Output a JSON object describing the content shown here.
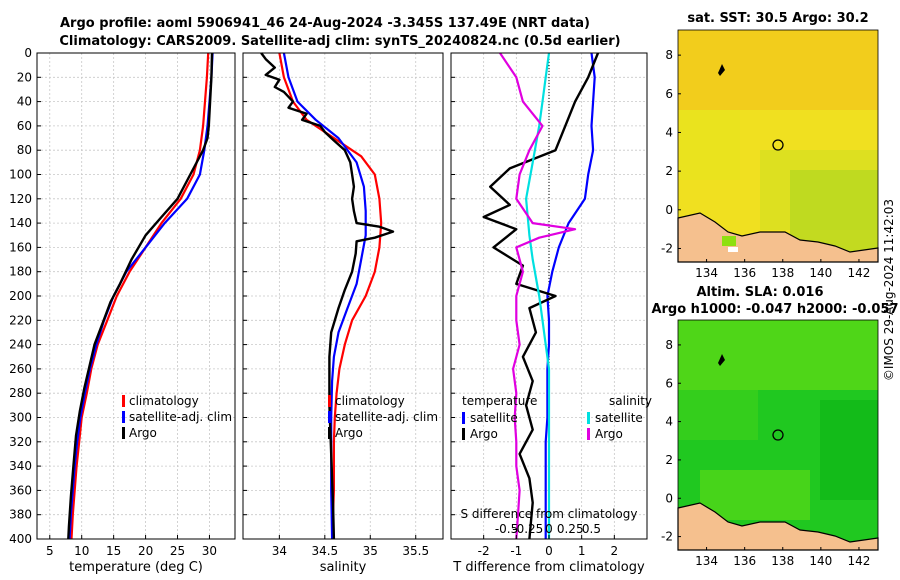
{
  "titles": {
    "line1": "Argo profile: aoml 5906941_46 24-Aug-2024 -3.345S 137.49E (NRT data)",
    "line2": "Climatology: CARS2009. Satellite-adj clim: synTS_20240824.nc (0.5d earlier)"
  },
  "chart_data": [
    {
      "id": "temperature",
      "type": "line",
      "xlabel": "temperature (deg C)",
      "ylabel": "",
      "xlim": [
        3,
        34
      ],
      "ylim": [
        400,
        0
      ],
      "xticks": [
        5,
        10,
        15,
        20,
        25,
        30
      ],
      "yticks": [
        0,
        20,
        40,
        60,
        80,
        100,
        120,
        140,
        160,
        180,
        200,
        220,
        240,
        260,
        280,
        300,
        320,
        340,
        360,
        380,
        400
      ],
      "legend": [
        "climatology",
        "satellite-adj. clim",
        "Argo"
      ],
      "series": [
        {
          "name": "climatology",
          "color": "#ff0000",
          "points": [
            [
              29.8,
              0
            ],
            [
              29.6,
              20
            ],
            [
              29.3,
              40
            ],
            [
              29.0,
              60
            ],
            [
              28.5,
              80
            ],
            [
              27.5,
              100
            ],
            [
              25.5,
              120
            ],
            [
              22.5,
              140
            ],
            [
              20.0,
              160
            ],
            [
              17.5,
              180
            ],
            [
              15.5,
              200
            ],
            [
              14.0,
              220
            ],
            [
              12.5,
              240
            ],
            [
              11.5,
              260
            ],
            [
              10.8,
              280
            ],
            [
              10.0,
              300
            ],
            [
              9.6,
              320
            ],
            [
              9.2,
              340
            ],
            [
              8.9,
              360
            ],
            [
              8.6,
              380
            ],
            [
              8.4,
              400
            ]
          ]
        },
        {
          "name": "satellite-adj. clim",
          "color": "#0000ff",
          "points": [
            [
              30.5,
              0
            ],
            [
              30.3,
              20
            ],
            [
              30.0,
              40
            ],
            [
              29.7,
              60
            ],
            [
              29.2,
              80
            ],
            [
              28.5,
              100
            ],
            [
              26.5,
              120
            ],
            [
              23.0,
              140
            ],
            [
              20.0,
              160
            ],
            [
              17.0,
              180
            ],
            [
              15.0,
              200
            ],
            [
              13.5,
              220
            ],
            [
              12.3,
              240
            ],
            [
              11.3,
              260
            ],
            [
              10.5,
              280
            ],
            [
              9.8,
              300
            ],
            [
              9.3,
              320
            ],
            [
              8.9,
              340
            ],
            [
              8.6,
              360
            ],
            [
              8.3,
              380
            ],
            [
              8.1,
              400
            ]
          ]
        },
        {
          "name": "Argo",
          "color": "#000000",
          "points": [
            [
              30.4,
              0
            ],
            [
              30.3,
              20
            ],
            [
              30.1,
              40
            ],
            [
              29.9,
              60
            ],
            [
              29.7,
              70
            ],
            [
              29.0,
              80
            ],
            [
              27.0,
              100
            ],
            [
              25.0,
              120
            ],
            [
              22.5,
              135
            ],
            [
              20.0,
              150
            ],
            [
              17.8,
              170
            ],
            [
              16.0,
              190
            ],
            [
              14.5,
              205
            ],
            [
              13.3,
              222
            ],
            [
              12.0,
              240
            ],
            [
              11.2,
              258
            ],
            [
              10.4,
              276
            ],
            [
              9.7,
              295
            ],
            [
              9.1,
              315
            ],
            [
              8.7,
              340
            ],
            [
              8.3,
              365
            ],
            [
              8.0,
              390
            ],
            [
              7.9,
              400
            ]
          ]
        }
      ]
    },
    {
      "id": "salinity",
      "type": "line",
      "xlabel": "salinity",
      "ylabel": "",
      "xlim": [
        33.6,
        35.8
      ],
      "ylim": [
        400,
        0
      ],
      "xticks": [
        34,
        34.5,
        35,
        35.5
      ],
      "legend": [
        "climatology",
        "satellite-adj. clim",
        "Argo"
      ],
      "series": [
        {
          "name": "climatology",
          "color": "#ff0000",
          "points": [
            [
              34.0,
              0
            ],
            [
              34.05,
              20
            ],
            [
              34.15,
              40
            ],
            [
              34.3,
              55
            ],
            [
              34.6,
              70
            ],
            [
              34.9,
              85
            ],
            [
              35.05,
              100
            ],
            [
              35.1,
              120
            ],
            [
              35.12,
              140
            ],
            [
              35.1,
              160
            ],
            [
              35.05,
              180
            ],
            [
              34.95,
              200
            ],
            [
              34.8,
              220
            ],
            [
              34.72,
              240
            ],
            [
              34.66,
              260
            ],
            [
              34.63,
              280
            ],
            [
              34.61,
              300
            ],
            [
              34.6,
              320
            ],
            [
              34.6,
              340
            ],
            [
              34.6,
              360
            ],
            [
              34.59,
              380
            ],
            [
              34.59,
              400
            ]
          ]
        },
        {
          "name": "satellite-adj. clim",
          "color": "#0000ff",
          "points": [
            [
              34.05,
              0
            ],
            [
              34.1,
              20
            ],
            [
              34.2,
              40
            ],
            [
              34.4,
              55
            ],
            [
              34.65,
              70
            ],
            [
              34.85,
              90
            ],
            [
              34.93,
              110
            ],
            [
              34.95,
              130
            ],
            [
              34.95,
              150
            ],
            [
              34.9,
              170
            ],
            [
              34.85,
              190
            ],
            [
              34.75,
              210
            ],
            [
              34.65,
              230
            ],
            [
              34.6,
              250
            ],
            [
              34.58,
              270
            ],
            [
              34.57,
              300
            ],
            [
              34.57,
              330
            ],
            [
              34.57,
              360
            ],
            [
              34.58,
              400
            ]
          ]
        },
        {
          "name": "Argo",
          "color": "#000000",
          "points": [
            [
              33.8,
              0
            ],
            [
              33.85,
              5
            ],
            [
              33.95,
              12
            ],
            [
              33.85,
              18
            ],
            [
              34.0,
              22
            ],
            [
              33.95,
              28
            ],
            [
              34.05,
              32
            ],
            [
              34.15,
              40
            ],
            [
              34.1,
              45
            ],
            [
              34.3,
              50
            ],
            [
              34.25,
              55
            ],
            [
              34.45,
              60
            ],
            [
              34.5,
              65
            ],
            [
              34.6,
              72
            ],
            [
              34.72,
              80
            ],
            [
              34.78,
              90
            ],
            [
              34.8,
              100
            ],
            [
              34.82,
              110
            ],
            [
              34.8,
              120
            ],
            [
              34.82,
              130
            ],
            [
              34.85,
              140
            ],
            [
              35.1,
              143
            ],
            [
              35.25,
              147
            ],
            [
              35.05,
              152
            ],
            [
              34.85,
              155
            ],
            [
              34.84,
              165
            ],
            [
              34.8,
              180
            ],
            [
              34.72,
              195
            ],
            [
              34.65,
              210
            ],
            [
              34.57,
              230
            ],
            [
              34.55,
              250
            ],
            [
              34.55,
              270
            ],
            [
              34.55,
              290
            ],
            [
              34.56,
              310
            ],
            [
              34.57,
              330
            ],
            [
              34.58,
              350
            ],
            [
              34.59,
              370
            ],
            [
              34.6,
              400
            ]
          ]
        }
      ]
    },
    {
      "id": "difference",
      "type": "line",
      "xlabel": "T difference from climatology",
      "x2label": "S difference from climatology",
      "xlim": [
        -3,
        3
      ],
      "ylim": [
        400,
        0
      ],
      "xticks": [
        -2,
        -1,
        0,
        1,
        2
      ],
      "x2ticks": [
        "-0.5",
        "-0.25",
        "0",
        "0.25",
        "0.5"
      ],
      "legend": {
        "temperature": [
          "satellite",
          "Argo"
        ],
        "salinity": [
          "satellite",
          "Argo"
        ]
      },
      "legend_titles": [
        "temperature",
        "salinity"
      ],
      "series": [
        {
          "name": "temperature satellite",
          "color": "#0000ff",
          "points": [
            [
              1.3,
              0
            ],
            [
              1.4,
              20
            ],
            [
              1.35,
              40
            ],
            [
              1.3,
              60
            ],
            [
              1.35,
              80
            ],
            [
              1.2,
              100
            ],
            [
              1.1,
              120
            ],
            [
              0.6,
              140
            ],
            [
              0.3,
              160
            ],
            [
              0.1,
              180
            ],
            [
              -0.05,
              200
            ],
            [
              0.0,
              220
            ],
            [
              0.0,
              240
            ],
            [
              -0.05,
              260
            ],
            [
              -0.05,
              280
            ],
            [
              -0.05,
              300
            ],
            [
              -0.1,
              320
            ],
            [
              -0.1,
              340
            ],
            [
              -0.1,
              360
            ],
            [
              -0.1,
              380
            ],
            [
              -0.1,
              400
            ]
          ]
        },
        {
          "name": "temperature Argo",
          "color": "#000000",
          "points": [
            [
              1.5,
              0
            ],
            [
              1.2,
              20
            ],
            [
              0.8,
              40
            ],
            [
              0.5,
              60
            ],
            [
              0.2,
              80
            ],
            [
              -1.2,
              95
            ],
            [
              -1.8,
              110
            ],
            [
              -1.2,
              125
            ],
            [
              -2.0,
              135
            ],
            [
              -1.0,
              145
            ],
            [
              -1.7,
              160
            ],
            [
              -0.8,
              175
            ],
            [
              -1.0,
              190
            ],
            [
              0.2,
              200
            ],
            [
              -0.6,
              210
            ],
            [
              -0.4,
              230
            ],
            [
              -0.8,
              250
            ],
            [
              -0.5,
              270
            ],
            [
              -0.7,
              290
            ],
            [
              -0.5,
              310
            ],
            [
              -0.9,
              330
            ],
            [
              -0.6,
              350
            ],
            [
              -0.5,
              370
            ],
            [
              -0.6,
              400
            ]
          ]
        },
        {
          "name": "salinity satellite",
          "color": "#00e0e0",
          "points": [
            [
              0.0,
              0
            ],
            [
              -0.1,
              20
            ],
            [
              -0.2,
              40
            ],
            [
              -0.3,
              60
            ],
            [
              -0.5,
              90
            ],
            [
              -0.7,
              120
            ],
            [
              -0.6,
              150
            ],
            [
              -0.5,
              170
            ],
            [
              -0.3,
              200
            ],
            [
              -0.2,
              220
            ],
            [
              -0.1,
              240
            ],
            [
              0.0,
              260
            ],
            [
              0.0,
              300
            ],
            [
              0.0,
              340
            ],
            [
              0.0,
              380
            ],
            [
              0.0,
              400
            ]
          ]
        },
        {
          "name": "salinity Argo",
          "color": "#e000e0",
          "points": [
            [
              -1.5,
              0
            ],
            [
              -1.0,
              20
            ],
            [
              -0.8,
              40
            ],
            [
              -0.2,
              60
            ],
            [
              -0.6,
              80
            ],
            [
              -0.9,
              100
            ],
            [
              -1.0,
              120
            ],
            [
              -0.5,
              140
            ],
            [
              0.8,
              145
            ],
            [
              -0.3,
              152
            ],
            [
              -1.0,
              160
            ],
            [
              -0.8,
              180
            ],
            [
              -1.0,
              200
            ],
            [
              -1.0,
              220
            ],
            [
              -0.9,
              240
            ],
            [
              -1.1,
              260
            ],
            [
              -1.0,
              280
            ],
            [
              -1.05,
              300
            ],
            [
              -1.0,
              320
            ],
            [
              -1.0,
              340
            ],
            [
              -0.9,
              360
            ],
            [
              -0.95,
              380
            ],
            [
              -1.0,
              400
            ]
          ]
        }
      ]
    }
  ],
  "maps": {
    "sst": {
      "title": "sat. SST: 30.5 Argo: 30.2",
      "xticks": [
        "134",
        "136",
        "138",
        "140",
        "142"
      ],
      "yticks": [
        "8",
        "6",
        "4",
        "2",
        "0",
        "-2"
      ]
    },
    "sla": {
      "title1": "Altim. SLA: 0.016",
      "title2": "Argo h1000: -0.047 h2000: -0.057",
      "xticks": [
        "134",
        "136",
        "138",
        "140",
        "142"
      ],
      "yticks": [
        "8",
        "6",
        "4",
        "2",
        "0",
        "-2"
      ]
    }
  },
  "watermark": "©IMOS 29-Aug-2024 11:42:03",
  "colors": {
    "climatology": "#ff0000",
    "satellite": "#0000ff",
    "argo": "#000000",
    "sal_sat": "#00e0e0",
    "sal_argo": "#e000e0"
  }
}
